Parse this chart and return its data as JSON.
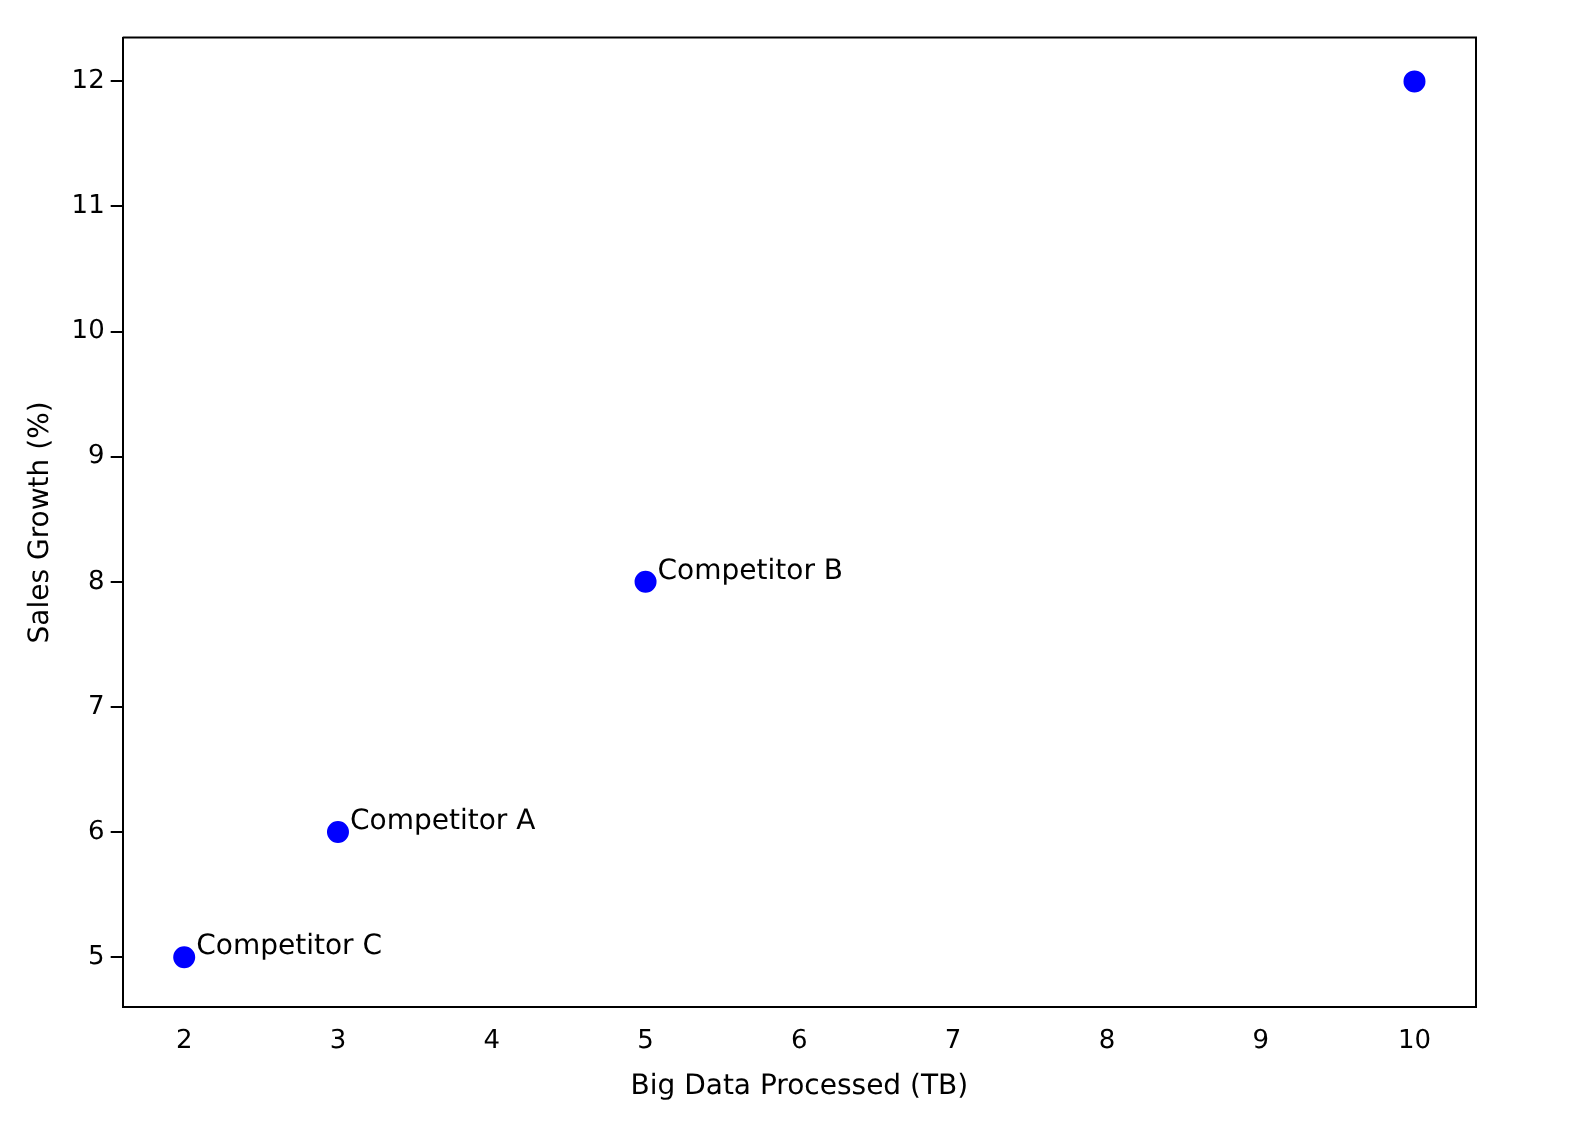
{
  "chart_data": {
    "type": "scatter",
    "xlabel": "Big Data Processed (TB)",
    "ylabel": "Sales Growth (%)",
    "x": [
      2,
      3,
      5,
      10
    ],
    "values": [
      5,
      6,
      8,
      12
    ],
    "color": "#0000ff",
    "marker": "circle",
    "grid": false,
    "legend": false,
    "xlim": [
      1.6,
      10.4
    ],
    "xticks": [
      2,
      3,
      4,
      5,
      6,
      7,
      8,
      9,
      10
    ],
    "ylim": [
      4.6,
      12.35
    ],
    "yticks": [
      5,
      6,
      7,
      8,
      9,
      10,
      11,
      12
    ],
    "annotations": [
      {
        "text": "Competitor C",
        "x": 2,
        "y": 5
      },
      {
        "text": "Competitor A",
        "x": 3,
        "y": 6
      },
      {
        "text": "Competitor B",
        "x": 5,
        "y": 8
      }
    ]
  }
}
